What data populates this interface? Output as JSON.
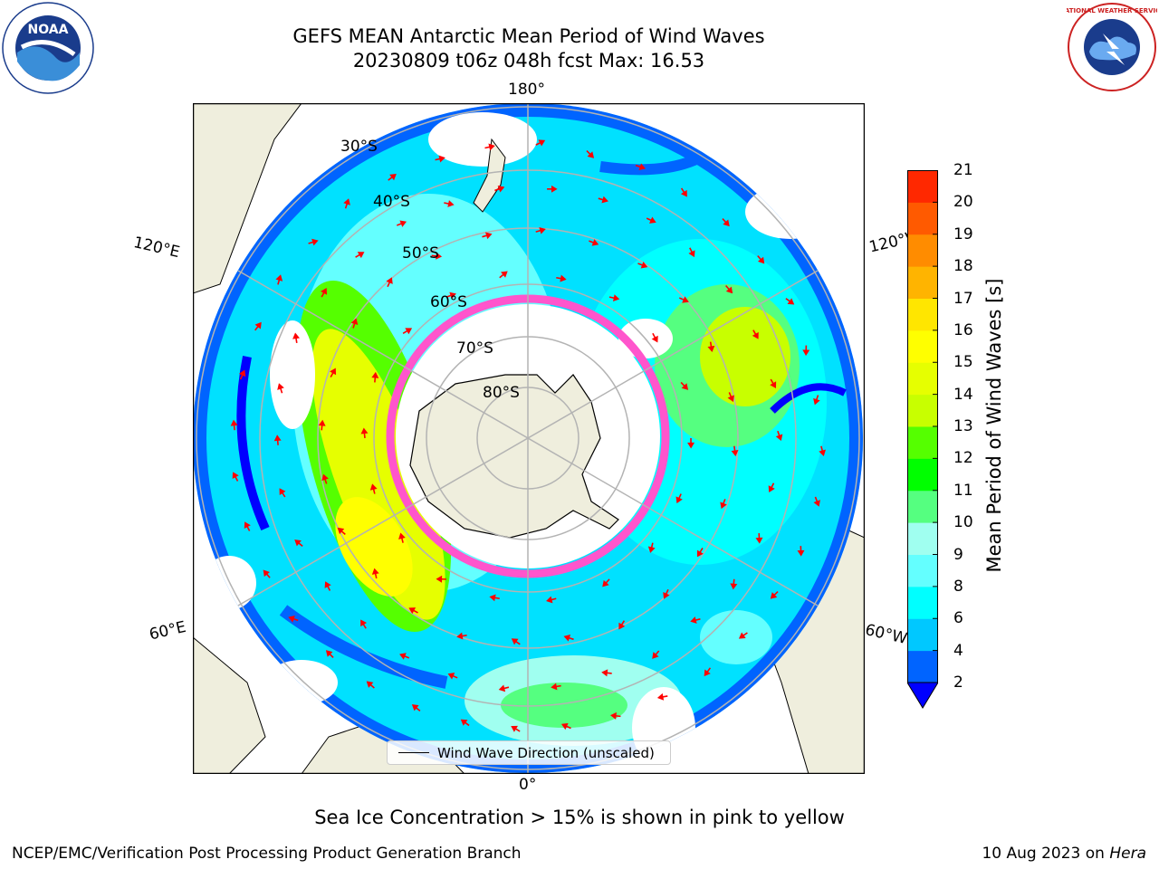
{
  "title": {
    "line1": "GEFS MEAN Antarctic Mean Period of Wind Waves",
    "line2": "20230809 t06z 048h fcst   Max: 16.53"
  },
  "map": {
    "projection": "south-polar-stereographic",
    "longitude_labels": {
      "top": "180°",
      "bottom": "0°",
      "upper_left": "120°E",
      "upper_right": "120°W",
      "lower_left": "60°E",
      "lower_right": "60°W"
    },
    "latitude_labels": [
      "30°S",
      "40°S",
      "50°S",
      "60°S",
      "70°S",
      "80°S"
    ],
    "colors": {
      "land": "#efeedd",
      "ocean_missing": "#ffffff",
      "grid": "#b3b3b3",
      "arrows": "#ff0000",
      "sea_ice": "#ff55cc"
    }
  },
  "legend": {
    "label": "Wind Wave Direction (unscaled)"
  },
  "colorbar": {
    "label": "Mean Period of Wind Waves [s]",
    "ticks": [
      "2",
      "4",
      "6",
      "8",
      "9",
      "10",
      "11",
      "12",
      "13",
      "14",
      "15",
      "16",
      "17",
      "18",
      "19",
      "20",
      "21"
    ],
    "colors": [
      "#0064ff",
      "#00c8ff",
      "#00ffff",
      "#64ffff",
      "#a0fff0",
      "#55ff80",
      "#00ff00",
      "#55ff00",
      "#c8ff00",
      "#e6ff00",
      "#ffff00",
      "#ffe600",
      "#ffb400",
      "#ff8c00",
      "#ff5a00",
      "#ff2800"
    ],
    "extend_color": "#0000ff"
  },
  "annotation": "Sea Ice Concentration > 15% is shown in pink to yellow",
  "footer": {
    "left": "NCEP/EMC/Verification Post Processing Product Generation Branch",
    "date": "10 Aug 2023 on",
    "machine": "Hera"
  },
  "logos": {
    "left": "NOAA",
    "right": "NATIONAL WEATHER SERVICE"
  }
}
